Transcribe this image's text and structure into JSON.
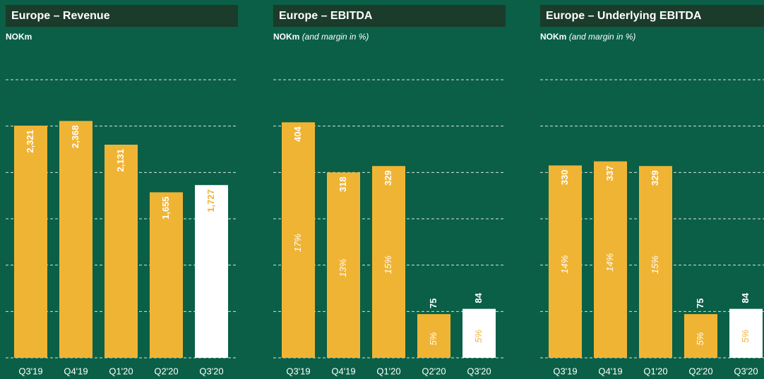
{
  "chart_data": [
    {
      "type": "bar",
      "title": "Europe – Revenue",
      "subtitle": "NOKm",
      "categories": [
        "Q3'19",
        "Q4'19",
        "Q1'20",
        "Q2'20",
        "Q3'20"
      ],
      "values": [
        2321,
        2368,
        2131,
        1655,
        1727
      ],
      "value_labels": [
        "2,321",
        "2,368",
        "2,131",
        "1,655",
        "1,727"
      ],
      "colors": [
        "#f0b435",
        "#f0b435",
        "#f0b435",
        "#f0b435",
        "#ffffff"
      ],
      "ylim": [
        0,
        2780
      ]
    },
    {
      "type": "bar",
      "title": "Europe – EBITDA",
      "subtitle": "NOKm",
      "subtitle_note": "(and margin in %)",
      "categories": [
        "Q3'19",
        "Q4'19",
        "Q1'20",
        "Q2'20",
        "Q3'20"
      ],
      "values": [
        404,
        318,
        329,
        75,
        84
      ],
      "margins": [
        17,
        13,
        15,
        5,
        5
      ],
      "margin_labels": [
        "17%",
        "13%",
        "15%",
        "5%",
        "5%"
      ],
      "colors": [
        "#f0b435",
        "#f0b435",
        "#f0b435",
        "#f0b435",
        "#ffffff"
      ],
      "ylim": [
        0,
        477
      ]
    },
    {
      "type": "bar",
      "title": "Europe – Underlying EBITDA",
      "subtitle": "NOKm",
      "subtitle_note": "(and margin in %)",
      "categories": [
        "Q3'19",
        "Q4'19",
        "Q1'20",
        "Q2'20",
        "Q3'20"
      ],
      "values": [
        330,
        337,
        329,
        75,
        84
      ],
      "margins": [
        14,
        14,
        15,
        5,
        5
      ],
      "margin_labels": [
        "14%",
        "14%",
        "15%",
        "5%",
        "5%"
      ],
      "colors": [
        "#f0b435",
        "#f0b435",
        "#f0b435",
        "#f0b435",
        "#ffffff"
      ],
      "ylim": [
        0,
        477
      ]
    }
  ]
}
